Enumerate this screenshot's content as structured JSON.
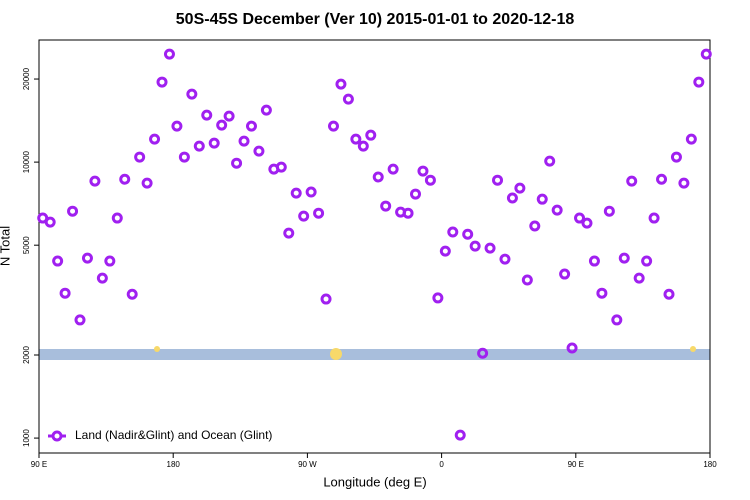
{
  "chart_data": {
    "type": "scatter",
    "title": "50S-45S December (Ver 10)   2015-01-01 to 2020-12-18",
    "x_label": "Longitude (deg E)",
    "y_label": "N Total",
    "log_y": true,
    "legend": "bottomleft",
    "xlim": [
      90,
      540
    ],
    "xticks": [
      {
        "value": 90,
        "label": "90 E"
      },
      180,
      {
        "value": 270,
        "label": "90 W"
      },
      {
        "value": 360,
        "label": "0"
      },
      {
        "value": 450,
        "label": "90 E"
      },
      {
        "value": 540,
        "label": "180"
      }
    ],
    "ylim": [
      883,
      27700
    ],
    "yticks": [
      1000,
      2000,
      5000,
      10000,
      20000
    ],
    "x": [
      92.5,
      97.5,
      102.5,
      107.5,
      112.5,
      117.5,
      122.5,
      127.5,
      132.5,
      137.5,
      142.5,
      147.5,
      152.5,
      157.5,
      162.5,
      167.5,
      172.5,
      177.5,
      182.5,
      187.5,
      192.5,
      197.5,
      202.5,
      207.5,
      212.5,
      217.5,
      222.5,
      227.5,
      232.5,
      237.5,
      242.5,
      247.5,
      252.5,
      257.5,
      262.5,
      267.5,
      272.5,
      277.5,
      282.5,
      287.5,
      292.5,
      297.5,
      302.5,
      307.5,
      312.5,
      317.5,
      322.5,
      327.5,
      332.5,
      337.5,
      342.5,
      347.5,
      352.5,
      357.5,
      362.5,
      367.5,
      372.5,
      377.5,
      382.5,
      387.5,
      392.5,
      397.5,
      402.5,
      407.5,
      412.5,
      417.5,
      422.5,
      427.5,
      432.5,
      437.5,
      442.5,
      447.5,
      452.5,
      457.5,
      462.5,
      467.5,
      472.5,
      477.5,
      482.5,
      487.5,
      492.5,
      497.5,
      502.5,
      507.5,
      512.5,
      517.5,
      522.5,
      527.5,
      532.5,
      537.5
    ],
    "series": [
      {
        "name": "Land (Nadir&Glint) and Ocean (Glint)",
        "color": "#a020f0",
        "values": [
          6270,
          6060,
          4380,
          3350,
          6640,
          2680,
          4490,
          8530,
          3800,
          4380,
          6270,
          8670,
          3320,
          10430,
          8390,
          12110,
          19500,
          24620,
          13500,
          10430,
          17630,
          11430,
          14800,
          11720,
          13620,
          14680,
          9910,
          11910,
          13500,
          10960,
          15430,
          9430,
          9590,
          5530,
          7720,
          6370,
          7790,
          6530,
          3190,
          13500,
          19170,
          16910,
          12110,
          11430,
          12520,
          8830,
          6930,
          9430,
          6590,
          6530,
          7660,
          9280,
          8600,
          3220,
          4760,
          5580,
          1025,
          5480,
          4960,
          2030,
          4880,
          8600,
          4450,
          7410,
          8050,
          3740,
          5870,
          7340,
          10080,
          6700,
          3930,
          2120,
          6270,
          6010,
          4380,
          3350,
          6640,
          2680,
          4490,
          8530,
          3800,
          4380,
          6270,
          8670,
          3320,
          10430,
          8390,
          12110,
          19500,
          24620
        ]
      }
    ]
  }
}
